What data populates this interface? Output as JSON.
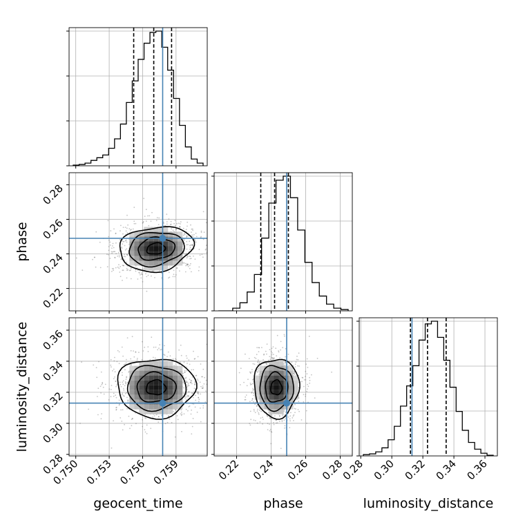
{
  "chart_data": {
    "type": "corner",
    "parameters": [
      {
        "key": "geocent_time",
        "label": "geocent_time",
        "range": [
          0.7494,
          0.7618
        ],
        "ticks": [
          0.75,
          0.753,
          0.756,
          0.759
        ],
        "tick_labels": [
          "0.750",
          "0.753",
          "0.756",
          "0.759"
        ],
        "truth": 0.7578,
        "quantiles": [
          0.7552,
          0.757,
          0.7586
        ]
      },
      {
        "key": "phase",
        "label": "phase",
        "range": [
          0.207,
          0.287
        ],
        "ticks": [
          0.22,
          0.24,
          0.26,
          0.28
        ],
        "tick_labels": [
          "0.22",
          "0.24",
          "0.26",
          "0.28"
        ],
        "truth": 0.249,
        "quantiles": [
          0.234,
          0.242,
          0.25
        ]
      },
      {
        "key": "luminosity_distance",
        "label": "luminosity_distance",
        "range": [
          0.279,
          0.368
        ],
        "ticks": [
          0.28,
          0.3,
          0.32,
          0.34,
          0.36
        ],
        "tick_labels": [
          "0.28",
          "0.30",
          "0.32",
          "0.34",
          "0.36"
        ],
        "truth": 0.313,
        "quantiles": [
          0.312,
          0.323,
          0.335
        ]
      }
    ],
    "histograms": [
      {
        "param": "geocent_time",
        "counts": [
          0.5,
          1,
          2,
          4,
          6,
          8,
          13,
          20,
          31,
          47,
          63,
          79,
          91,
          99,
          100,
          88,
          71,
          50,
          30,
          14,
          5,
          2
        ]
      },
      {
        "param": "phase",
        "counts": [
          0,
          0,
          2,
          6,
          14,
          27,
          54,
          80,
          97,
          100,
          84,
          60,
          36,
          21,
          11,
          5,
          2,
          1
        ]
      },
      {
        "param": "luminosity_distance",
        "counts": [
          1,
          1.5,
          3,
          6,
          12,
          22,
          37,
          52,
          67,
          86,
          98,
          100,
          88,
          71,
          51,
          33,
          19,
          10,
          5,
          2,
          0.5
        ]
      }
    ],
    "pairs": [
      {
        "x": "geocent_time",
        "y": "phase",
        "center": [
          0.7572,
          0.243
        ],
        "sigma": [
          0.00165,
          0.0065
        ],
        "rho": -0.15
      },
      {
        "x": "geocent_time",
        "y": "luminosity_distance",
        "center": [
          0.7572,
          0.323
        ],
        "sigma": [
          0.00175,
          0.0095
        ],
        "rho": 0.0
      },
      {
        "x": "phase",
        "y": "luminosity_distance",
        "center": [
          0.243,
          0.323
        ],
        "sigma": [
          0.0065,
          0.0095
        ],
        "rho": 0.0
      }
    ],
    "grid": true,
    "truth_color": "#4682b4",
    "hist_color": "#000000"
  }
}
